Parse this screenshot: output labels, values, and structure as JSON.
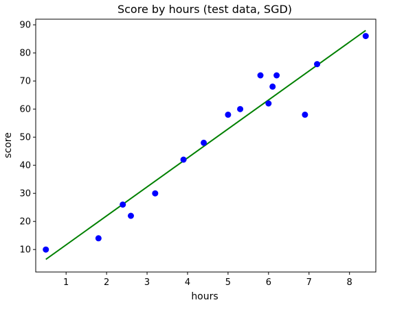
{
  "chart_data": {
    "type": "scatter",
    "title": "Score by hours (test data, SGD)",
    "xlabel": "hours",
    "ylabel": "score",
    "xlim": [
      0.25,
      8.65
    ],
    "ylim": [
      2.0,
      92.0
    ],
    "xticks": [
      1,
      2,
      3,
      4,
      5,
      6,
      7,
      8
    ],
    "yticks": [
      10,
      20,
      30,
      40,
      50,
      60,
      70,
      80,
      90
    ],
    "grid": false,
    "series": [
      {
        "kind": "scatter",
        "color": "#0000ff",
        "points": [
          {
            "x": 0.5,
            "y": 10
          },
          {
            "x": 1.8,
            "y": 14
          },
          {
            "x": 2.4,
            "y": 26
          },
          {
            "x": 2.6,
            "y": 22
          },
          {
            "x": 3.2,
            "y": 30
          },
          {
            "x": 3.9,
            "y": 42
          },
          {
            "x": 4.4,
            "y": 48
          },
          {
            "x": 5.0,
            "y": 58
          },
          {
            "x": 5.3,
            "y": 60
          },
          {
            "x": 5.8,
            "y": 72
          },
          {
            "x": 6.0,
            "y": 62
          },
          {
            "x": 6.1,
            "y": 68
          },
          {
            "x": 6.2,
            "y": 72
          },
          {
            "x": 6.9,
            "y": 58
          },
          {
            "x": 7.2,
            "y": 76
          },
          {
            "x": 8.4,
            "y": 86
          }
        ]
      },
      {
        "kind": "line",
        "color": "#008000",
        "points": [
          {
            "x": 0.5,
            "y": 6.5
          },
          {
            "x": 8.4,
            "y": 88.0
          }
        ]
      }
    ]
  }
}
